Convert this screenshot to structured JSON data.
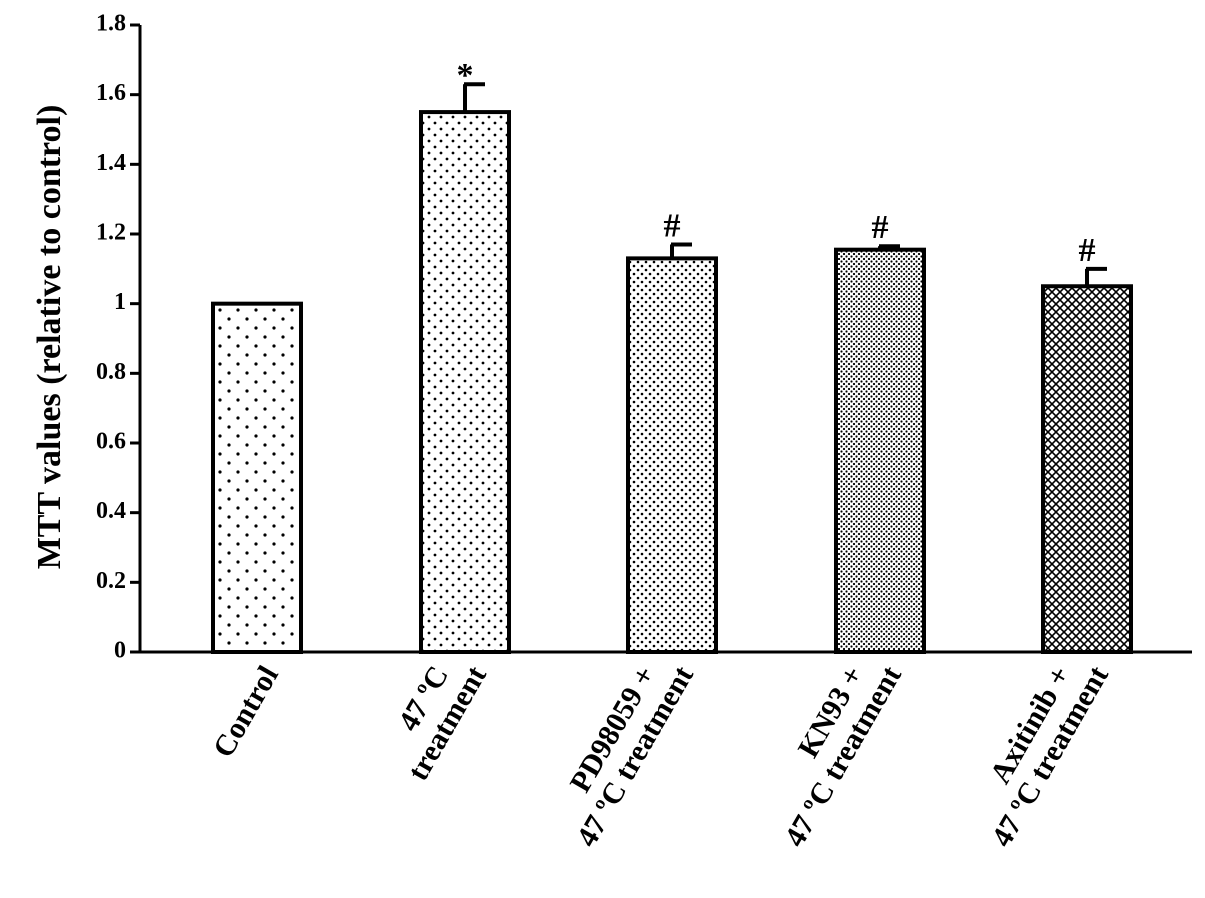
{
  "chart_data": {
    "type": "bar",
    "title": "",
    "xlabel": "",
    "ylabel": "MTT values (relative to control)",
    "ylim": [
      0,
      1.8
    ],
    "yticks": [
      {
        "value": 0,
        "label": "0"
      },
      {
        "value": 0.2,
        "label": "0.2"
      },
      {
        "value": 0.4,
        "label": "0.4"
      },
      {
        "value": 0.6,
        "label": "0.6"
      },
      {
        "value": 0.8,
        "label": "0.8"
      },
      {
        "value": 1,
        "label": "1"
      },
      {
        "value": 1.2,
        "label": "1.2"
      },
      {
        "value": 1.4,
        "label": "1.4"
      },
      {
        "value": 1.6,
        "label": "1.6"
      },
      {
        "value": 1.8,
        "label": "1.8"
      }
    ],
    "categories": [
      {
        "lines": [
          "Control"
        ]
      },
      {
        "lines": [
          "47 ºC",
          "treatment"
        ]
      },
      {
        "lines": [
          "PD98059 +",
          "47 ºC treatment"
        ]
      },
      {
        "lines": [
          "KN93 +",
          "47 ºC treatment"
        ]
      },
      {
        "lines": [
          "Axitinib +",
          "47 ºC treatment"
        ]
      }
    ],
    "values": [
      1.0,
      1.55,
      1.13,
      1.155,
      1.05
    ],
    "errors": [
      0,
      0.08,
      0.04,
      0.01,
      0.05
    ],
    "annotations": [
      "",
      "*",
      "#",
      "#",
      "#"
    ],
    "patterns": [
      "sparse-dots",
      "medium-dots",
      "dense-dots",
      "fine-dots",
      "crosshatch"
    ],
    "grid": false,
    "legend": "none"
  }
}
